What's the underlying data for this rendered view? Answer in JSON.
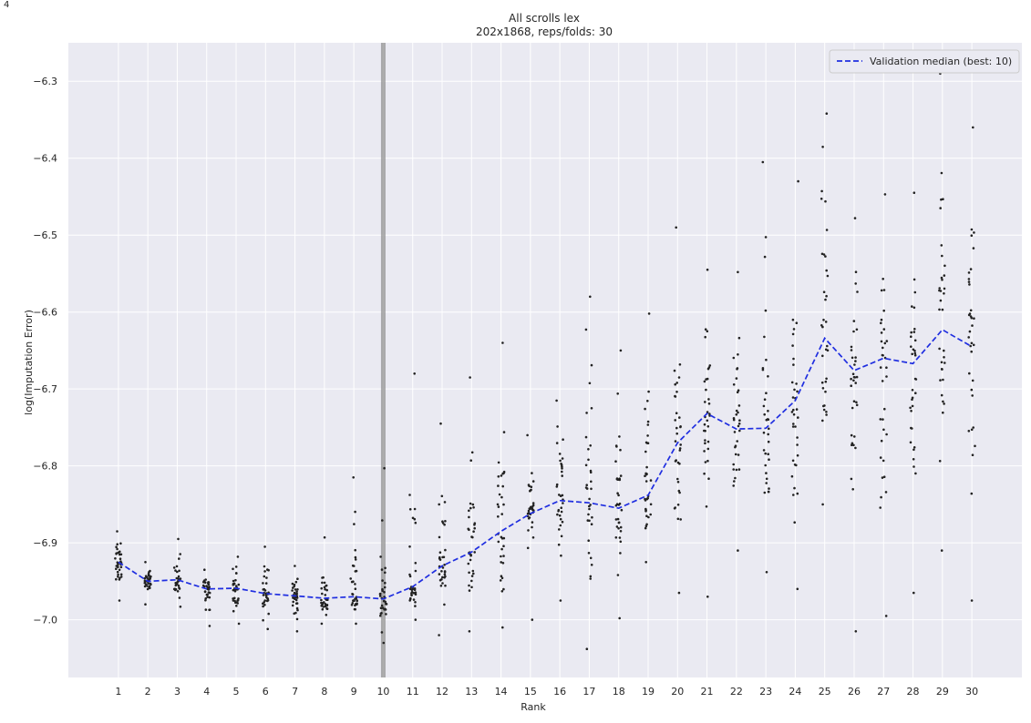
{
  "corner_mark": "4",
  "chart_data": {
    "type": "scatter",
    "title": "All scrolls lex",
    "subtitle": "202x1868, reps/folds: 30",
    "xlabel": "Rank",
    "ylabel": "log(Imputation Error)",
    "x_ticks": [
      1,
      2,
      3,
      4,
      5,
      6,
      7,
      8,
      9,
      10,
      11,
      12,
      13,
      14,
      15,
      16,
      17,
      18,
      19,
      20,
      21,
      22,
      23,
      24,
      25,
      26,
      27,
      28,
      29,
      30
    ],
    "y_ticks": [
      -7.0,
      -6.9,
      -6.8,
      -6.7,
      -6.6,
      -6.5,
      -6.4,
      -6.3
    ],
    "y_tick_labels": [
      "−7.0",
      "−6.9",
      "−6.8",
      "−6.7",
      "−6.6",
      "−6.5",
      "−6.4",
      "−6.3"
    ],
    "xlim": [
      -0.7,
      31.7
    ],
    "ylim": [
      -7.075,
      -6.25
    ],
    "grid": true,
    "legend_placement": "top-right",
    "best_rank": 10,
    "series": [
      {
        "name": "Validation median (best: 10)",
        "style": "dashed",
        "color": "#1f2ee0",
        "x": [
          1,
          2,
          3,
          4,
          5,
          6,
          7,
          8,
          9,
          10,
          11,
          12,
          13,
          14,
          15,
          16,
          17,
          18,
          19,
          20,
          21,
          22,
          23,
          24,
          25,
          26,
          27,
          28,
          29,
          30
        ],
        "values": [
          -6.925,
          -6.95,
          -6.948,
          -6.96,
          -6.959,
          -6.966,
          -6.969,
          -6.972,
          -6.97,
          -6.973,
          -6.957,
          -6.93,
          -6.912,
          -6.885,
          -6.862,
          -6.845,
          -6.848,
          -6.855,
          -6.838,
          -6.77,
          -6.732,
          -6.752,
          -6.751,
          -6.715,
          -6.634,
          -6.676,
          -6.66,
          -6.667,
          -6.623,
          -6.645
        ]
      }
    ],
    "scatter_spread": [
      {
        "lo": -6.975,
        "hi": -6.885
      },
      {
        "lo": -6.98,
        "hi": -6.925
      },
      {
        "lo": -6.983,
        "hi": -6.895
      },
      {
        "lo": -7.008,
        "hi": -6.935
      },
      {
        "lo": -7.005,
        "hi": -6.918
      },
      {
        "lo": -7.012,
        "hi": -6.905
      },
      {
        "lo": -7.015,
        "hi": -6.93
      },
      {
        "lo": -7.005,
        "hi": -6.893
      },
      {
        "lo": -7.005,
        "hi": -6.815
      },
      {
        "lo": -7.03,
        "hi": -6.803
      },
      {
        "lo": -7.0,
        "hi": -6.68
      },
      {
        "lo": -7.02,
        "hi": -6.745
      },
      {
        "lo": -7.015,
        "hi": -6.685
      },
      {
        "lo": -7.01,
        "hi": -6.64
      },
      {
        "lo": -7.0,
        "hi": -6.76
      },
      {
        "lo": -6.975,
        "hi": -6.715
      },
      {
        "lo": -7.038,
        "hi": -6.58
      },
      {
        "lo": -6.998,
        "hi": -6.65
      },
      {
        "lo": -6.925,
        "hi": -6.602
      },
      {
        "lo": -6.965,
        "hi": -6.49
      },
      {
        "lo": -6.97,
        "hi": -6.545
      },
      {
        "lo": -6.91,
        "hi": -6.548
      },
      {
        "lo": -6.938,
        "hi": -6.405
      },
      {
        "lo": -6.96,
        "hi": -6.43
      },
      {
        "lo": -6.85,
        "hi": -6.342
      },
      {
        "lo": -7.015,
        "hi": -6.478
      },
      {
        "lo": -6.995,
        "hi": -6.447
      },
      {
        "lo": -6.965,
        "hi": -6.445
      },
      {
        "lo": -6.91,
        "hi": -6.29
      },
      {
        "lo": -6.975,
        "hi": -6.36
      }
    ]
  }
}
